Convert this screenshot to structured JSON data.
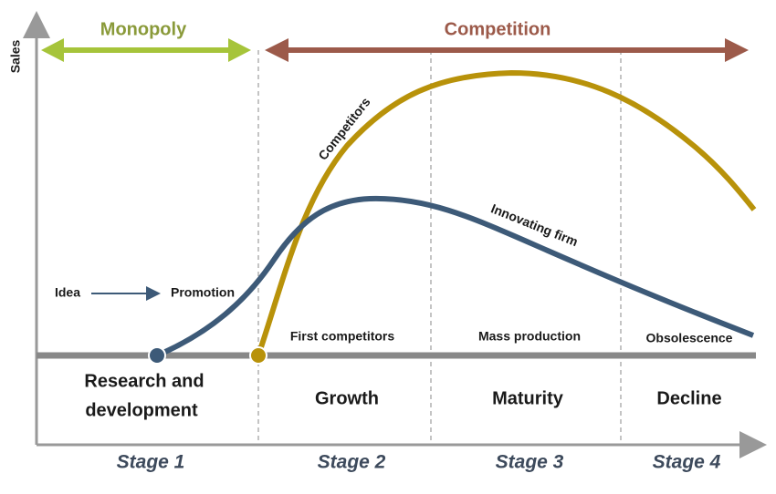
{
  "axis": {
    "y_label": "Sales"
  },
  "phases": {
    "monopoly": "Monopoly",
    "competition": "Competition"
  },
  "curves": {
    "competitors": "Competitors",
    "innovating_firm": "Innovating firm"
  },
  "flow": {
    "from": "Idea",
    "to": "Promotion"
  },
  "substages": [
    "First competitors",
    "Mass production",
    "Obsolescence"
  ],
  "stages": [
    {
      "name": [
        "Research and",
        "development"
      ],
      "label": "Stage 1"
    },
    {
      "name": [
        "Growth"
      ],
      "label": "Stage 2"
    },
    {
      "name": [
        "Maturity"
      ],
      "label": "Stage 3"
    },
    {
      "name": [
        "Decline"
      ],
      "label": "Stage 4"
    }
  ]
}
